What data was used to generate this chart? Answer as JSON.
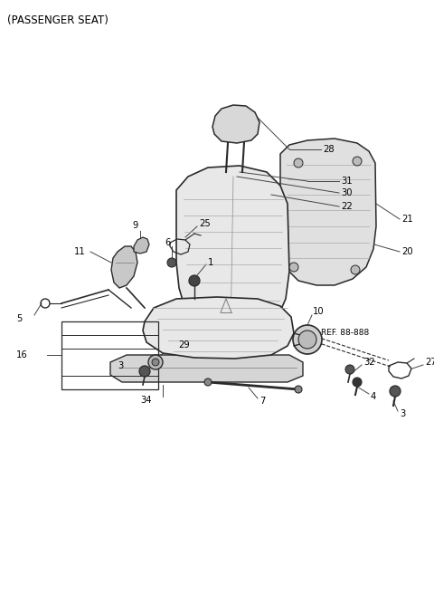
{
  "title": "(PASSENGER SEAT)",
  "bg_color": "#ffffff",
  "line_color": "#2a2a2a",
  "ref_text": "REF. 88-888",
  "figsize": [
    4.8,
    6.56
  ],
  "dpi": 100
}
